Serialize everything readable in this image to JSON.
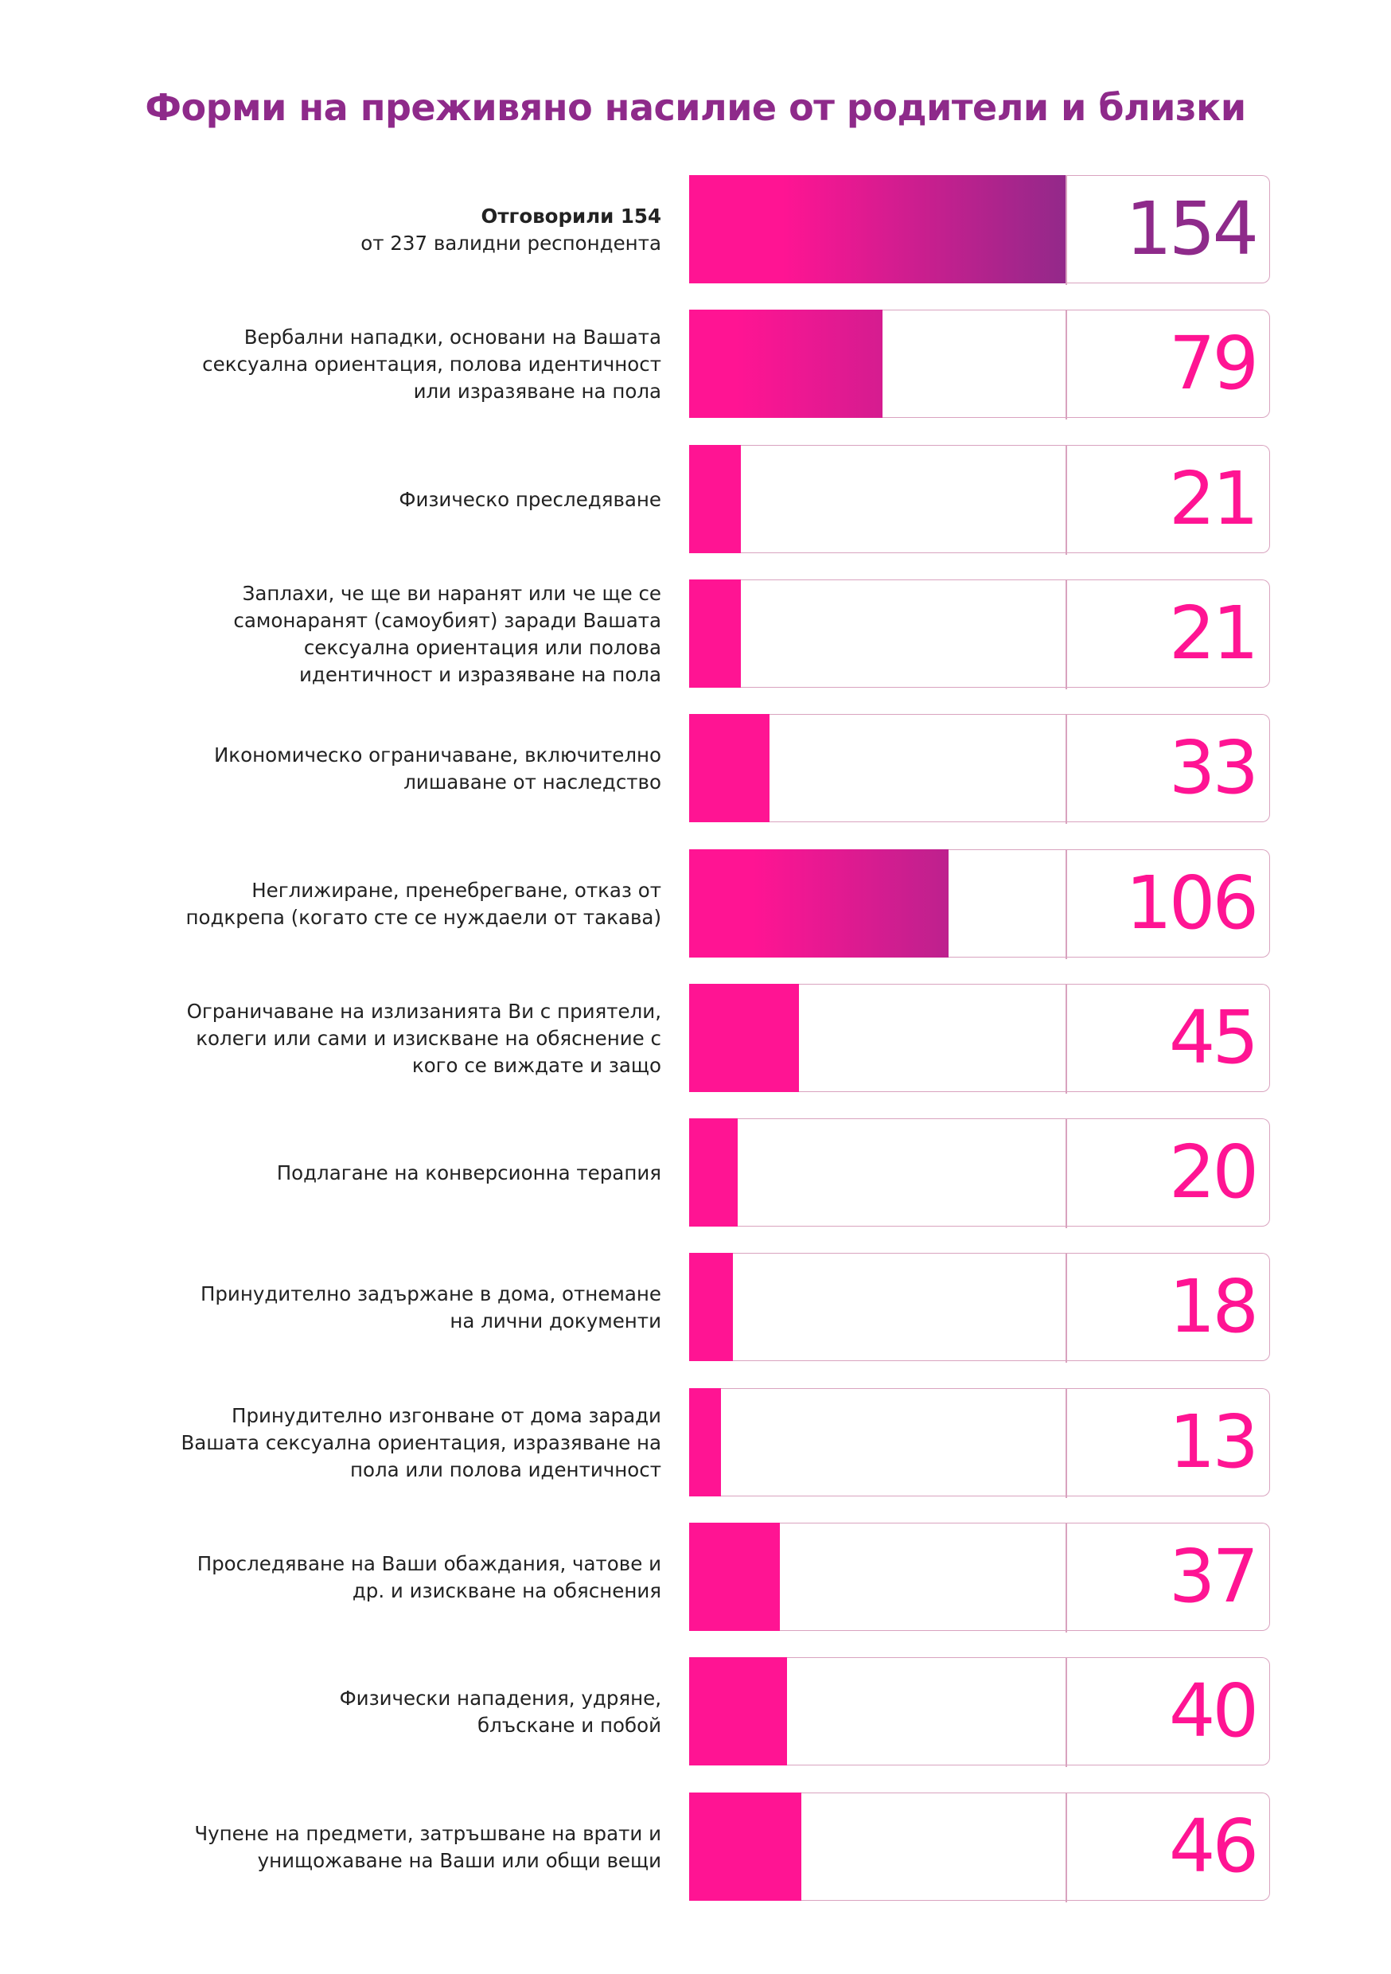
{
  "title": "Форми на преживяно насилие от родители и близки",
  "colors": {
    "pink": "#ff1493",
    "purple": "#8e2a8a",
    "frame": "#d9a3bf",
    "text": "#222222"
  },
  "chart_data": {
    "type": "bar",
    "orientation": "horizontal",
    "title": "Форми на преживяно насилие от родители и близки",
    "xlim": [
      0,
      154
    ],
    "categories": [
      [
        "Отговорили 154",
        "от 237 валидни респондента"
      ],
      [
        "Вербални нападки, основани на Вашата",
        "сексуална ориентация, полова идентичност",
        "или изразяване на пола"
      ],
      [
        "Физическо преследяване"
      ],
      [
        "Заплахи, че ще ви наранят или че ще се",
        "самонаранят (самоубият) заради Вашата",
        "сексуална ориентация или полова",
        "идентичност и изразяване на пола"
      ],
      [
        "Икономическо ограничаване, включително",
        "лишаване от наследство"
      ],
      [
        "Неглижиране, пренебрегване, отказ от",
        "подкрепа (когато сте се нуждаели от такава)"
      ],
      [
        "Ограничаване на излизанията Ви с приятели,",
        "колеги или сами и изискване на обяснение с",
        "кого се виждате и защо"
      ],
      [
        "Подлагане на конверсионна терапия"
      ],
      [
        "Принудително задържане в дома, отнемане",
        "на лични документи"
      ],
      [
        "Принудително изгонване от дома заради",
        "Вашата сексуална ориентация, изразяване на",
        "пола или полова идентичност"
      ],
      [
        "Проследяване на Ваши обаждания, чатове и",
        "др. и изискване на обяснения"
      ],
      [
        "Физически нападения, удряне,",
        "блъскане и побой"
      ],
      [
        "Чупене на предмети, затръшване на врати и",
        "унищожаване на Ваши или общи вещи"
      ]
    ],
    "values": [
      154,
      79,
      21,
      21,
      33,
      106,
      45,
      20,
      18,
      13,
      37,
      40,
      46
    ]
  }
}
